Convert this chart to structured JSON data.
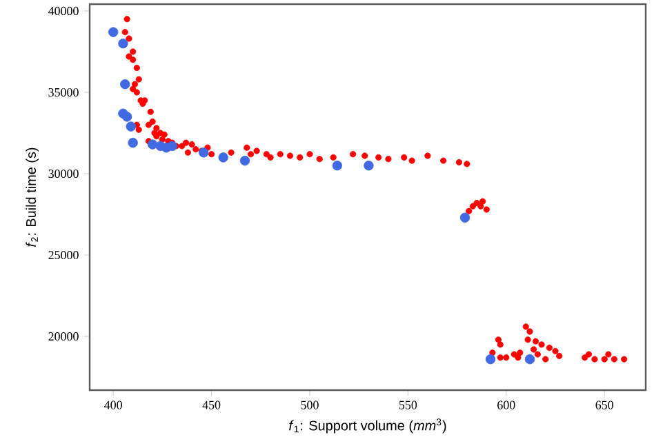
{
  "chart_data": {
    "type": "scatter",
    "xlabel": "*f*$_{1}$: Support volume (*mm*$^{3}$)",
    "ylabel": "*f*$_{2}$: Build time (s)",
    "marker": "circle",
    "xlim": [
      388,
      671
    ],
    "ylim": [
      16700,
      40420
    ],
    "xticks": [
      400,
      450,
      500,
      550,
      600,
      650
    ],
    "yticks": [
      20000,
      25000,
      30000,
      35000,
      40000
    ],
    "series": [
      {
        "color": "#ff0000",
        "x": [
          407,
          406,
          408,
          410,
          408,
          410,
          412,
          413,
          411,
          410,
          412,
          414,
          415,
          416,
          419,
          418,
          412,
          413,
          420,
          422,
          421,
          424,
          426,
          422,
          418,
          425,
          428,
          430,
          432,
          435,
          437,
          440,
          442,
          445,
          438,
          448,
          450,
          460,
          468,
          470,
          473,
          478,
          480,
          485,
          490,
          495,
          500,
          505,
          512,
          522,
          528,
          535,
          540,
          548,
          552,
          560,
          568,
          576,
          580,
          583,
          585,
          588,
          587,
          590,
          581,
          593,
          597,
          600,
          604,
          607,
          610,
          612,
          611,
          615,
          618,
          614,
          622,
          625,
          627,
          620,
          616,
          606,
          640,
          642,
          645,
          650,
          652,
          655,
          660,
          596,
          597
        ],
        "values": [
          39500,
          38700,
          38300,
          37500,
          37200,
          37000,
          36500,
          35800,
          35500,
          35200,
          35000,
          34500,
          34300,
          34500,
          33800,
          33000,
          33000,
          32700,
          33200,
          32800,
          32500,
          32500,
          32400,
          32300,
          32000,
          32100,
          32000,
          31900,
          31700,
          31700,
          31900,
          31800,
          31500,
          31400,
          31300,
          31600,
          31200,
          31300,
          31600,
          31200,
          31400,
          31200,
          31000,
          31200,
          31100,
          31000,
          31200,
          30900,
          31000,
          31200,
          31100,
          31000,
          30900,
          31000,
          30800,
          31100,
          30800,
          30700,
          30600,
          28000,
          28200,
          28300,
          28000,
          27800,
          27700,
          19000,
          18700,
          18700,
          18900,
          19000,
          20600,
          20300,
          19800,
          19700,
          19500,
          19200,
          19300,
          19100,
          18800,
          18600,
          18900,
          18700,
          18700,
          18900,
          18600,
          18600,
          18900,
          18600,
          18600,
          19800,
          19500
        ]
      },
      {
        "color": "#4169e1",
        "x": [
          400,
          405,
          406,
          405,
          407,
          409,
          410,
          420,
          424,
          427,
          430,
          446,
          455,
          456,
          466,
          467,
          514,
          530,
          579,
          592,
          612
        ],
        "values": [
          38700,
          38000,
          35500,
          33700,
          33500,
          32900,
          31900,
          31800,
          31700,
          31600,
          31700,
          31300,
          null,
          31000,
          null,
          30800,
          30500,
          30500,
          27300,
          18600,
          18600
        ]
      }
    ]
  }
}
